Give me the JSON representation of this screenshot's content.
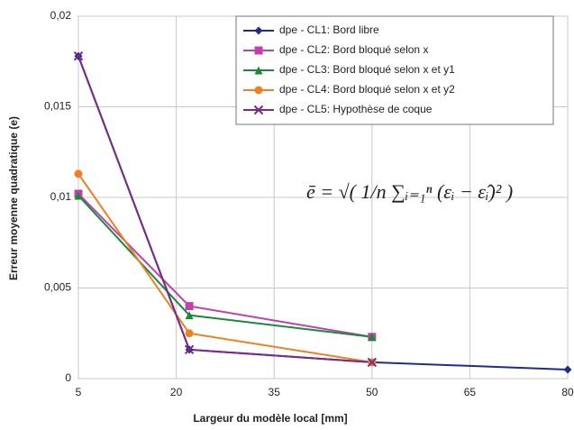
{
  "chart_data": {
    "type": "line",
    "x_label": "Largeur du modèle local [mm]",
    "y_label": "Erreur moyenne quadratique (e)",
    "annotation": "ē = √( 1/n ∑ᵢ₌₁ⁿ (εᵢ − ε̂ᵢ)² )",
    "x": [
      5,
      22,
      50,
      80
    ],
    "xlim": [
      5,
      80
    ],
    "xticks": [
      5,
      20,
      35,
      50,
      65,
      80
    ],
    "ylim": [
      0,
      0.02
    ],
    "yticks": [
      0,
      {
        "value": 0.005,
        "label": "0,005"
      },
      {
        "value": 0.01,
        "label": "0,01"
      },
      {
        "value": 0.015,
        "label": "0,015"
      },
      {
        "value": 0.02,
        "label": "0,02"
      }
    ],
    "grid": true,
    "legend": "upper right",
    "series": [
      {
        "name": "dpe - CL1: Bord libre",
        "color": "#1f2d8a",
        "marker": "diamond",
        "values": [
          0.0178,
          0.0016,
          0.0009,
          0.0005
        ]
      },
      {
        "name": "dpe - CL2: Bord bloqué selon x",
        "color": "#c040b0",
        "marker": "square",
        "values": [
          0.0102,
          0.004,
          0.0023,
          null
        ]
      },
      {
        "name": "dpe - CL3: Bord bloqué selon x et y1",
        "color": "#1a8a3a",
        "marker": "triangle",
        "values": [
          0.0101,
          0.0035,
          0.0023,
          null
        ]
      },
      {
        "name": "dpe - CL4: Bord bloqué selon x et y2",
        "color": "#f08020",
        "marker": "circle",
        "values": [
          0.0113,
          0.0025,
          0.0009,
          null
        ]
      },
      {
        "name": "dpe - CL5: Hypothèse de coque",
        "color": "#7a2a8a",
        "marker": "cross",
        "values": [
          0.0178,
          0.0016,
          0.0009,
          null
        ]
      }
    ]
  }
}
